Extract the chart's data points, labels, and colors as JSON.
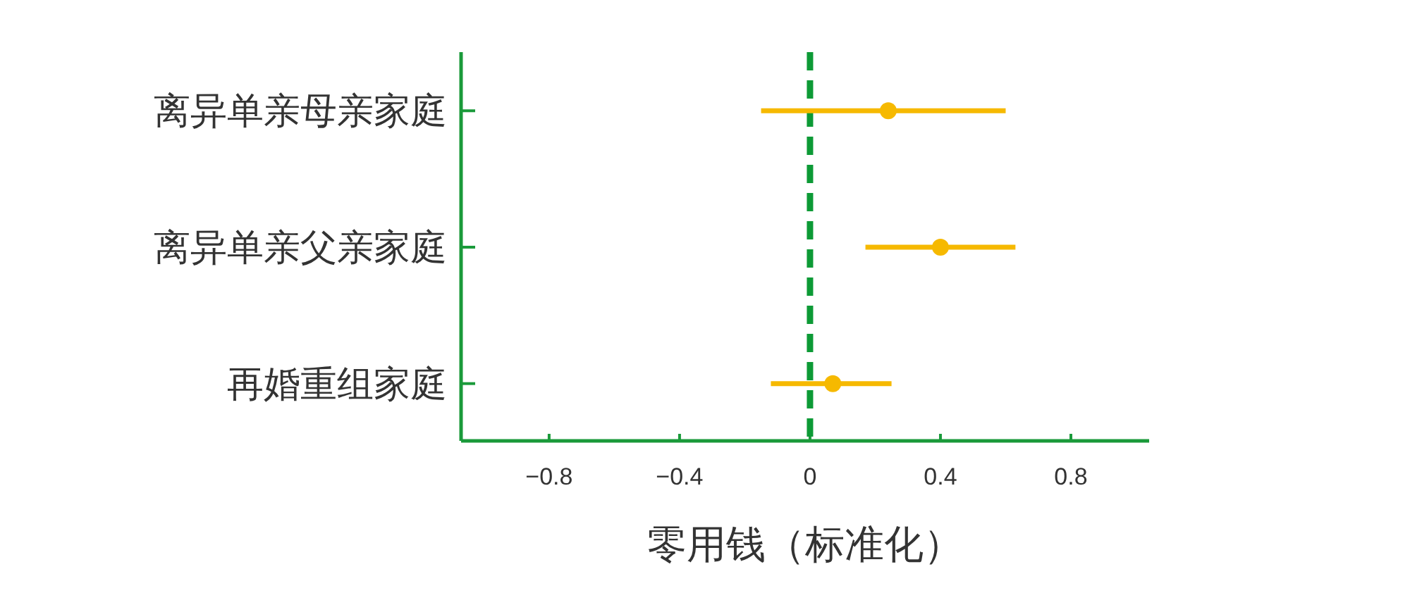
{
  "chart_data": {
    "type": "scatter",
    "orientation": "horizontal",
    "categories": [
      "离异单亲母亲家庭",
      "离异单亲父亲家庭",
      "再婚重组家庭"
    ],
    "values": [
      0.24,
      0.4,
      0.07
    ],
    "errors": [
      [
        -0.15,
        0.6
      ],
      [
        0.17,
        0.63
      ],
      [
        -0.12,
        0.25
      ]
    ],
    "color": "#f6b900",
    "marker": "circle",
    "xlim": [
      -1.07,
      1.04
    ],
    "xticks": [
      {
        "value": -0.8,
        "label": "−0.8"
      },
      {
        "value": -0.4,
        "label": "−0.4"
      },
      0,
      0.4,
      0.8
    ],
    "xlabel": "零用钱（标准化）",
    "ref_lines": [
      {
        "axis": "x",
        "value": 0,
        "color": "#0d9a36",
        "line_style": "dashed"
      }
    ],
    "grid": false
  }
}
